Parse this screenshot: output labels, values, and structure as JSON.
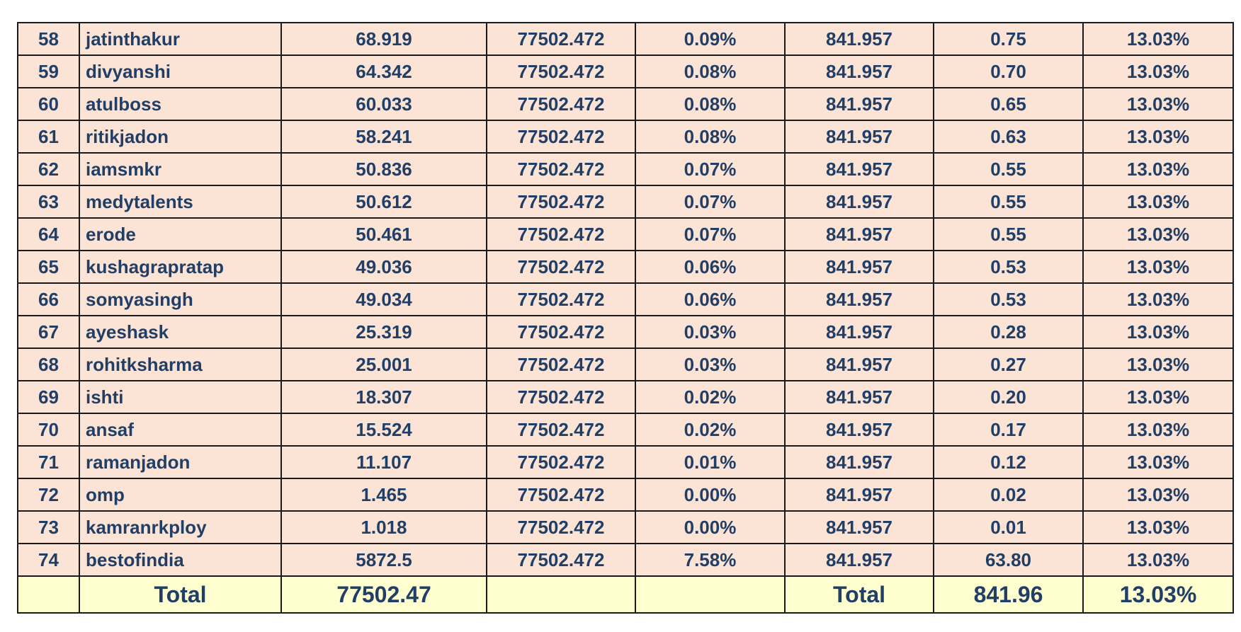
{
  "rows": [
    {
      "rank": "58",
      "name": "jatinthakur",
      "value": "68.919",
      "total": "77502.472",
      "share": "0.09%",
      "pool": "841.957",
      "reward": "0.75",
      "rate": "13.03%"
    },
    {
      "rank": "59",
      "name": "divyanshi",
      "value": "64.342",
      "total": "77502.472",
      "share": "0.08%",
      "pool": "841.957",
      "reward": "0.70",
      "rate": "13.03%"
    },
    {
      "rank": "60",
      "name": "atulboss",
      "value": "60.033",
      "total": "77502.472",
      "share": "0.08%",
      "pool": "841.957",
      "reward": "0.65",
      "rate": "13.03%"
    },
    {
      "rank": "61",
      "name": "ritikjadon",
      "value": "58.241",
      "total": "77502.472",
      "share": "0.08%",
      "pool": "841.957",
      "reward": "0.63",
      "rate": "13.03%"
    },
    {
      "rank": "62",
      "name": "iamsmkr",
      "value": "50.836",
      "total": "77502.472",
      "share": "0.07%",
      "pool": "841.957",
      "reward": "0.55",
      "rate": "13.03%"
    },
    {
      "rank": "63",
      "name": "medytalents",
      "value": "50.612",
      "total": "77502.472",
      "share": "0.07%",
      "pool": "841.957",
      "reward": "0.55",
      "rate": "13.03%"
    },
    {
      "rank": "64",
      "name": "erode",
      "value": "50.461",
      "total": "77502.472",
      "share": "0.07%",
      "pool": "841.957",
      "reward": "0.55",
      "rate": "13.03%"
    },
    {
      "rank": "65",
      "name": "kushagrapratap",
      "value": "49.036",
      "total": "77502.472",
      "share": "0.06%",
      "pool": "841.957",
      "reward": "0.53",
      "rate": "13.03%"
    },
    {
      "rank": "66",
      "name": "somyasingh",
      "value": "49.034",
      "total": "77502.472",
      "share": "0.06%",
      "pool": "841.957",
      "reward": "0.53",
      "rate": "13.03%"
    },
    {
      "rank": "67",
      "name": "ayeshask",
      "value": "25.319",
      "total": "77502.472",
      "share": "0.03%",
      "pool": "841.957",
      "reward": "0.28",
      "rate": "13.03%"
    },
    {
      "rank": "68",
      "name": "rohitksharma",
      "value": "25.001",
      "total": "77502.472",
      "share": "0.03%",
      "pool": "841.957",
      "reward": "0.27",
      "rate": "13.03%"
    },
    {
      "rank": "69",
      "name": "ishti",
      "value": "18.307",
      "total": "77502.472",
      "share": "0.02%",
      "pool": "841.957",
      "reward": "0.20",
      "rate": "13.03%"
    },
    {
      "rank": "70",
      "name": "ansaf",
      "value": "15.524",
      "total": "77502.472",
      "share": "0.02%",
      "pool": "841.957",
      "reward": "0.17",
      "rate": "13.03%"
    },
    {
      "rank": "71",
      "name": "ramanjadon",
      "value": "11.107",
      "total": "77502.472",
      "share": "0.01%",
      "pool": "841.957",
      "reward": "0.12",
      "rate": "13.03%"
    },
    {
      "rank": "72",
      "name": "omp",
      "value": "1.465",
      "total": "77502.472",
      "share": "0.00%",
      "pool": "841.957",
      "reward": "0.02",
      "rate": "13.03%"
    },
    {
      "rank": "73",
      "name": "kamranrkploy",
      "value": "1.018",
      "total": "77502.472",
      "share": "0.00%",
      "pool": "841.957",
      "reward": "0.01",
      "rate": "13.03%"
    },
    {
      "rank": "74",
      "name": "bestofindia",
      "value": "5872.5",
      "total": "77502.472",
      "share": "7.58%",
      "pool": "841.957",
      "reward": "63.80",
      "rate": "13.03%"
    }
  ],
  "totals": {
    "label_left": "Total",
    "value": "77502.47",
    "label_right": "Total",
    "reward": "841.96",
    "rate": "13.03%"
  },
  "colors": {
    "row_bg": "#fbe4d6",
    "total_bg": "#fefecf",
    "text": "#213e66",
    "border": "#1a1a1a"
  }
}
